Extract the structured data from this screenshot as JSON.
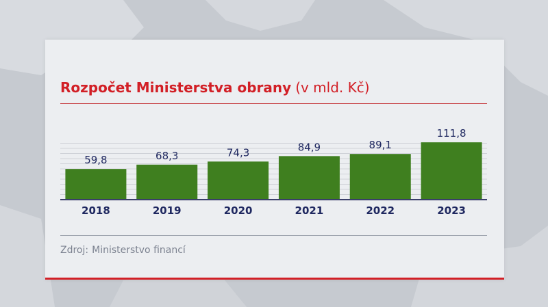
{
  "header": {
    "title": "Rozpočet Ministerstva obrany",
    "unit": "(v mld. Kč)"
  },
  "footer": {
    "source_label": "Zdroj:",
    "source_value": "Ministerstvo financí"
  },
  "colors": {
    "accent": "#d21f26",
    "bar": "#3f7f1f",
    "value_text": "#1f2860",
    "axis": "#3a3f6a",
    "grid": "#cfd2d8"
  },
  "chart_data": {
    "type": "bar",
    "title": "Rozpočet Ministerstva obrany (v mld. Kč)",
    "categories": [
      "2018",
      "2019",
      "2020",
      "2021",
      "2022",
      "2023"
    ],
    "values": [
      59.8,
      68.3,
      74.3,
      84.9,
      89.1,
      111.8
    ],
    "value_labels": [
      "59,8",
      "68,3",
      "74,3",
      "84,9",
      "89,1",
      "111,8"
    ],
    "xlabel": "",
    "ylabel": "",
    "ylim": [
      0,
      120
    ],
    "grid": true,
    "legend": "none"
  }
}
